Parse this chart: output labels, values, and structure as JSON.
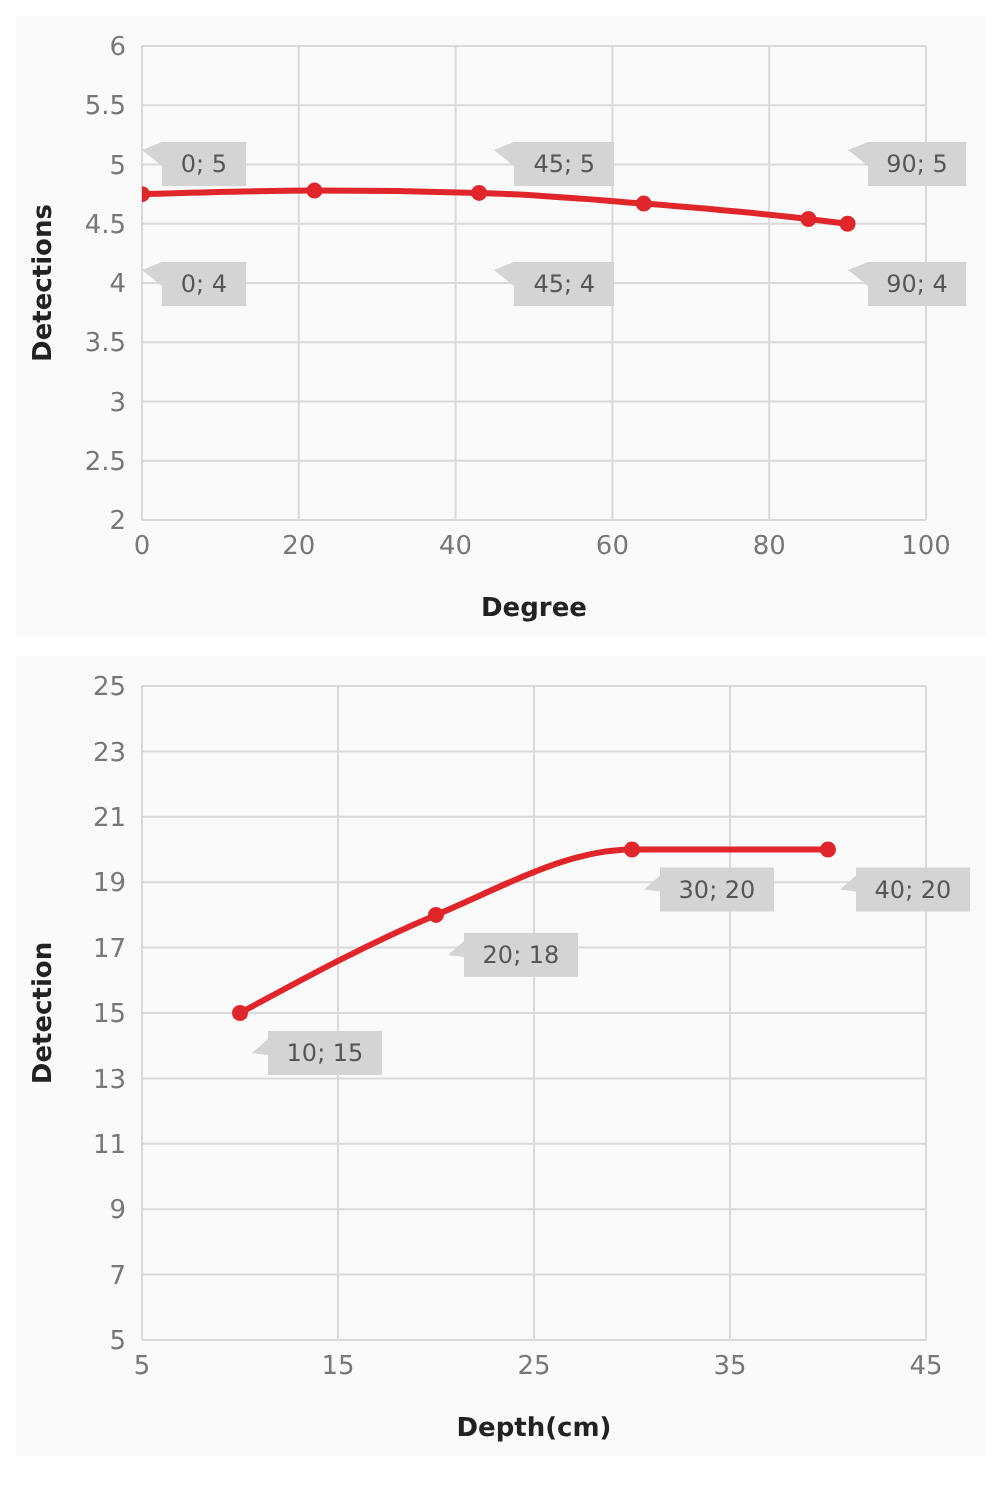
{
  "chart_data": [
    {
      "type": "line",
      "xlabel": "Degree",
      "ylabel": "Detections",
      "x": [
        0,
        22,
        43,
        64,
        85,
        90
      ],
      "series": [
        {
          "color": "#e0262b",
          "values": [
            4.75,
            4.78,
            4.76,
            4.67,
            4.54,
            4.5
          ]
        }
      ],
      "xlim": [
        0,
        100
      ],
      "xticks": [
        0,
        20,
        40,
        60,
        80,
        100
      ],
      "ylim": [
        2,
        6
      ],
      "yticks": [
        2,
        2.5,
        3,
        3.5,
        4,
        4.5,
        5,
        5.5,
        6
      ],
      "grid": true,
      "marker": "circle",
      "line_style": "solid",
      "annotations": [
        "0; 5",
        "45; 5",
        "90; 5",
        "0; 4",
        "45; 4",
        "90; 4"
      ]
    },
    {
      "type": "line",
      "xlabel": "Depth(cm)",
      "ylabel": "Detection",
      "x": [
        10,
        20,
        30,
        40
      ],
      "series": [
        {
          "color": "#e0262b",
          "values": [
            15,
            18,
            20,
            20
          ],
          "value_labels": [
            "10; 15",
            "20; 18",
            "30; 20",
            "40; 20"
          ]
        }
      ],
      "xlim": [
        5,
        45
      ],
      "xticks": [
        5,
        15,
        25,
        35,
        45
      ],
      "ylim": [
        5,
        25
      ],
      "yticks": [
        5,
        7,
        9,
        11,
        13,
        15,
        17,
        19,
        21,
        23,
        25
      ],
      "grid": true,
      "marker": "circle",
      "line_style": "solid"
    }
  ]
}
